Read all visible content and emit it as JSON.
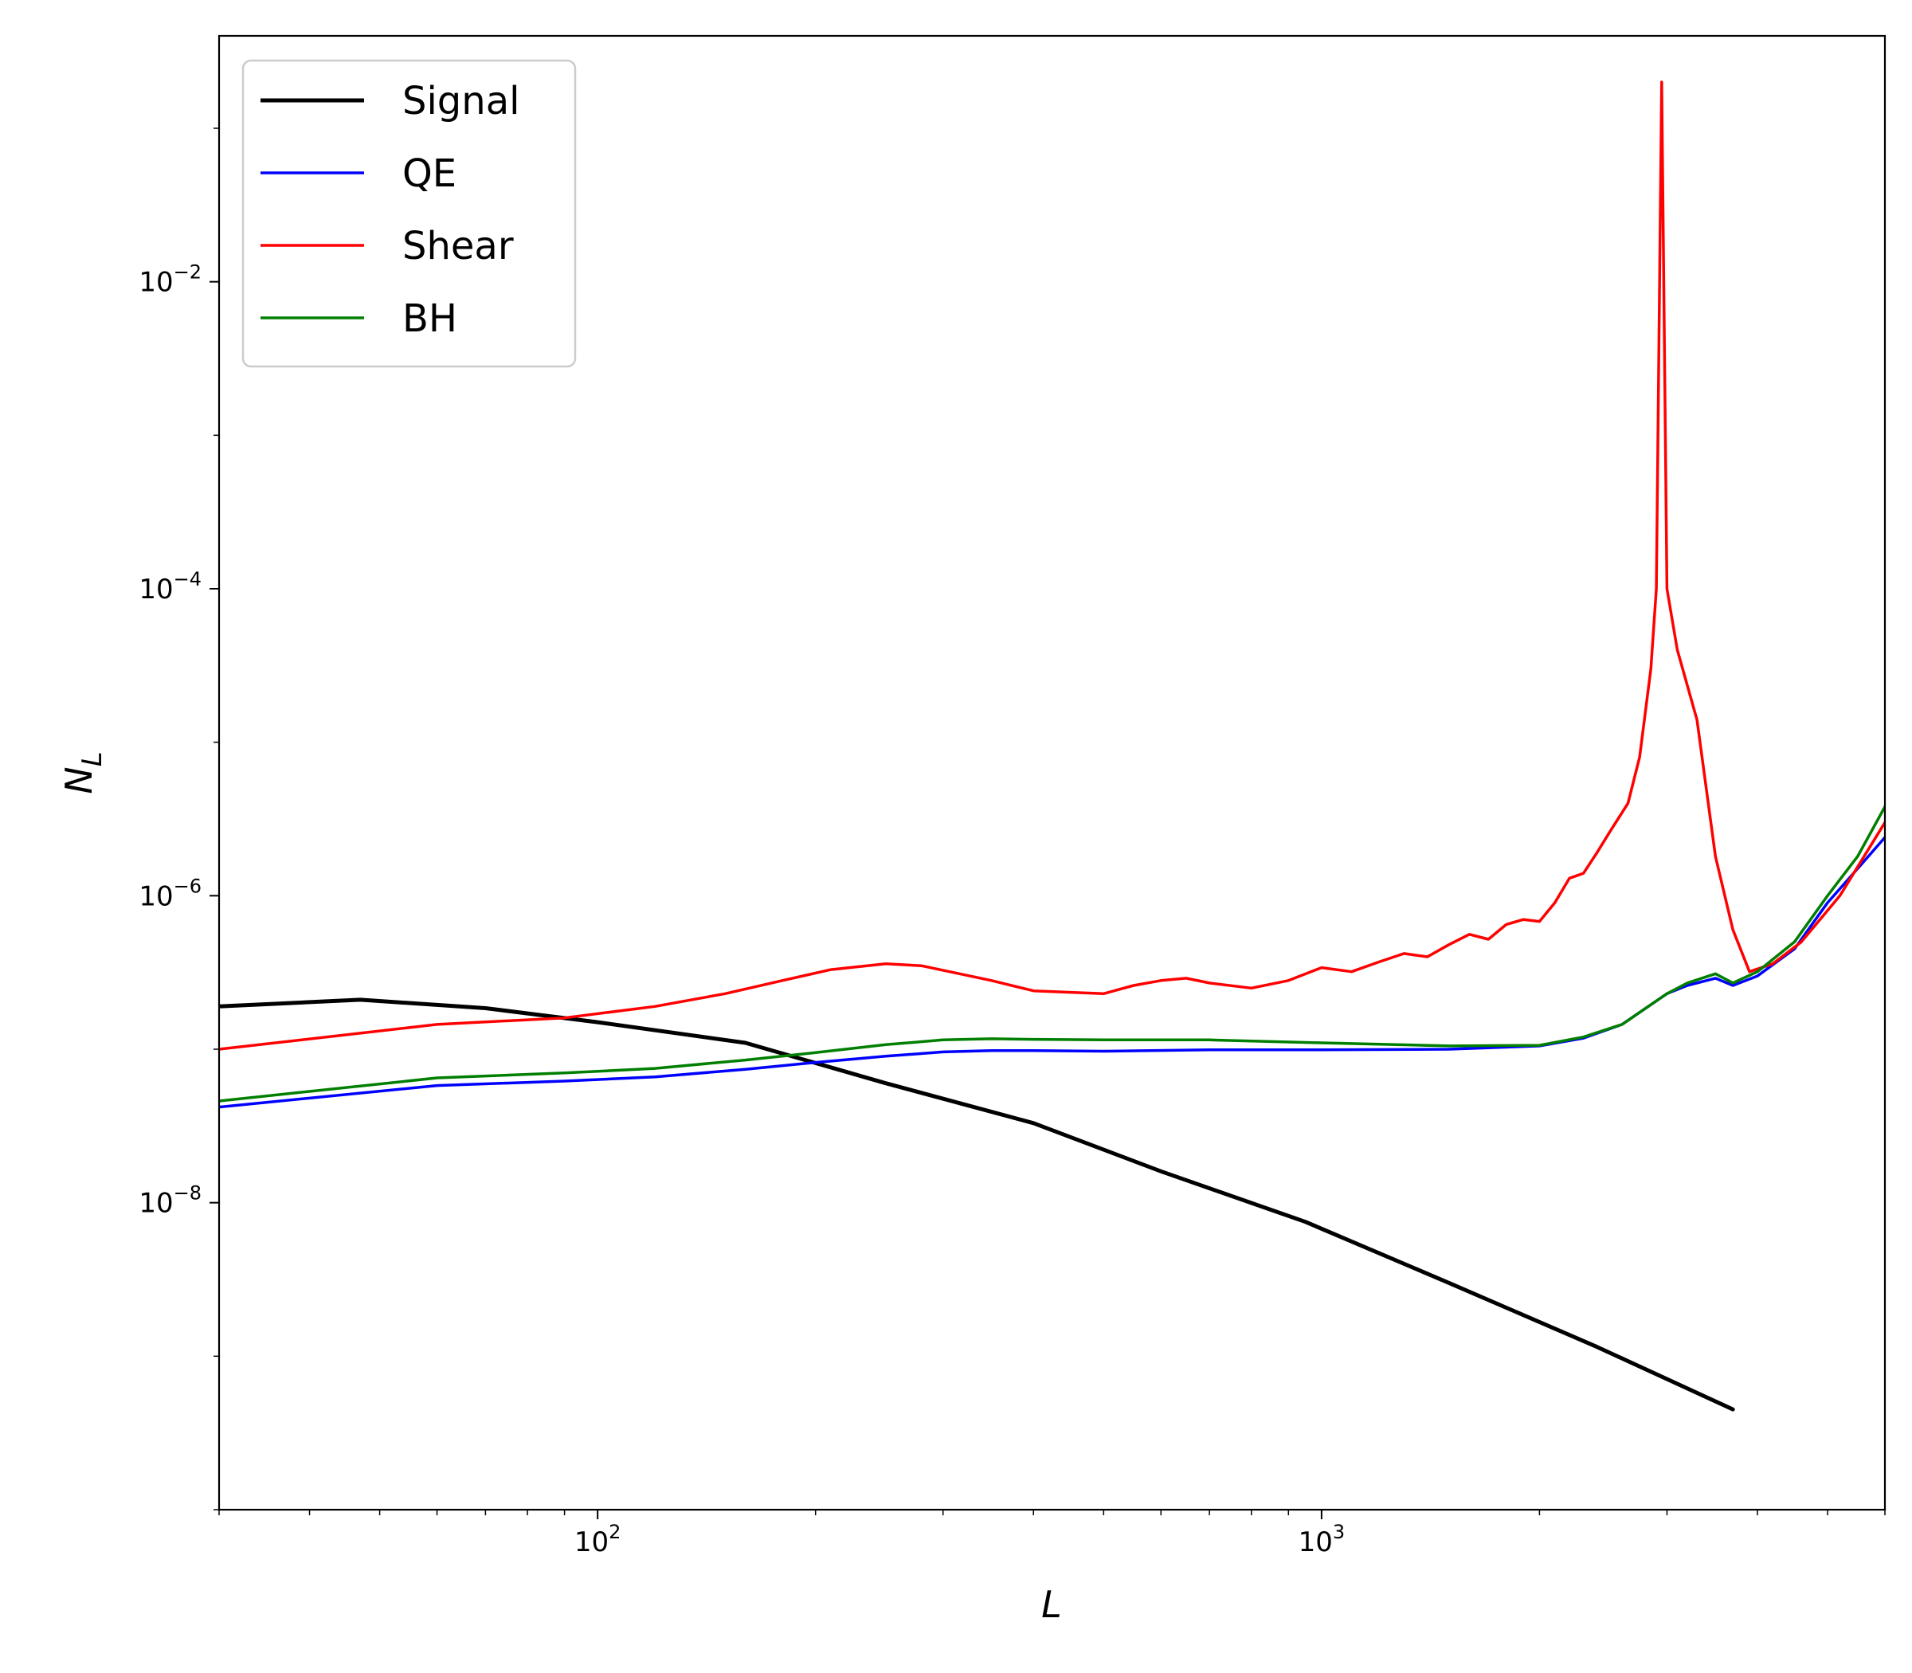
{
  "chart_data": {
    "type": "line",
    "xscale": "log",
    "yscale": "log",
    "xlabel": "L",
    "ylabel": "N_L",
    "xlim": [
      30,
      6000
    ],
    "ylim": [
      1e-10,
      0.4
    ],
    "x_ticks": [
      {
        "value": 100,
        "base": "10",
        "exp": "2"
      },
      {
        "value": 1000,
        "base": "10",
        "exp": "3"
      }
    ],
    "y_ticks": [
      {
        "value": 1e-08,
        "base": "10",
        "exp": "−8"
      },
      {
        "value": 1e-06,
        "base": "10",
        "exp": "−6"
      },
      {
        "value": 0.0001,
        "base": "10",
        "exp": "−4"
      },
      {
        "value": 0.01,
        "base": "10",
        "exp": "−2"
      }
    ],
    "legend_position": "upper-left",
    "series": [
      {
        "name": "Signal",
        "color": "#000000",
        "x": [
          30,
          47,
          70,
          100,
          160,
          250,
          400,
          600,
          950,
          1500,
          2400,
          3700
        ],
        "y": [
          1.9e-07,
          2.1e-07,
          1.85e-07,
          1.5e-07,
          1.1e-07,
          6e-08,
          3.3e-08,
          1.6e-08,
          7.5e-09,
          3e-09,
          1.15e-09,
          4.5e-10
        ]
      },
      {
        "name": "QE",
        "color": "#0000ff",
        "x": [
          30,
          60,
          90,
          120,
          160,
          200,
          250,
          300,
          350,
          400,
          500,
          700,
          1000,
          1500,
          2000,
          2300,
          2600,
          3000,
          3200,
          3500,
          3700,
          4000,
          4500,
          5000,
          5500,
          6000
        ],
        "y": [
          4.2e-08,
          5.8e-08,
          6.2e-08,
          6.6e-08,
          7.4e-08,
          8.2e-08,
          9e-08,
          9.6e-08,
          9.8e-08,
          9.8e-08,
          9.7e-08,
          9.9e-08,
          9.9e-08,
          1e-07,
          1.05e-07,
          1.18e-07,
          1.45e-07,
          2.3e-07,
          2.6e-07,
          2.9e-07,
          2.6e-07,
          3e-07,
          4.5e-07,
          9e-07,
          1.5e-06,
          2.4e-06
        ]
      },
      {
        "name": "Shear",
        "color": "#ff0000",
        "x": [
          30,
          60,
          90,
          120,
          150,
          180,
          210,
          250,
          280,
          350,
          400,
          500,
          550,
          600,
          650,
          700,
          800,
          900,
          1000,
          1100,
          1200,
          1300,
          1400,
          1500,
          1600,
          1700,
          1800,
          1900,
          2000,
          2100,
          2200,
          2300,
          2400,
          2500,
          2650,
          2750,
          2850,
          2900,
          2950,
          3000,
          3100,
          3300,
          3500,
          3700,
          3900,
          4200,
          4600,
          5200,
          6000
        ],
        "y": [
          1e-07,
          1.45e-07,
          1.6e-07,
          1.9e-07,
          2.3e-07,
          2.8e-07,
          3.3e-07,
          3.6e-07,
          3.5e-07,
          2.8e-07,
          2.4e-07,
          2.3e-07,
          2.6e-07,
          2.8e-07,
          2.9e-07,
          2.7e-07,
          2.5e-07,
          2.8e-07,
          3.4e-07,
          3.2e-07,
          3.7e-07,
          4.2e-07,
          4e-07,
          4.8e-07,
          5.6e-07,
          5.2e-07,
          6.5e-07,
          7e-07,
          6.8e-07,
          9e-07,
          1.3e-06,
          1.4e-06,
          1.9e-06,
          2.6e-06,
          4e-06,
          8e-06,
          3e-05,
          0.0001,
          0.2,
          0.0001,
          4e-05,
          1.4e-05,
          1.8e-06,
          6e-07,
          3.2e-07,
          3.6e-07,
          5e-07,
          1e-06,
          3e-06
        ]
      },
      {
        "name": "BH",
        "color": "#007f00",
        "x": [
          30,
          60,
          90,
          120,
          160,
          200,
          250,
          300,
          350,
          400,
          500,
          700,
          1000,
          1500,
          2000,
          2300,
          2600,
          3000,
          3200,
          3500,
          3700,
          4000,
          4500,
          5000,
          5500,
          6000
        ],
        "y": [
          4.6e-08,
          6.5e-08,
          7e-08,
          7.5e-08,
          8.5e-08,
          9.5e-08,
          1.07e-07,
          1.15e-07,
          1.17e-07,
          1.16e-07,
          1.15e-07,
          1.15e-07,
          1.1e-07,
          1.05e-07,
          1.06e-07,
          1.2e-07,
          1.45e-07,
          2.3e-07,
          2.7e-07,
          3.1e-07,
          2.7e-07,
          3.2e-07,
          5e-07,
          1e-06,
          1.8e-06,
          3.8e-06
        ]
      }
    ]
  }
}
